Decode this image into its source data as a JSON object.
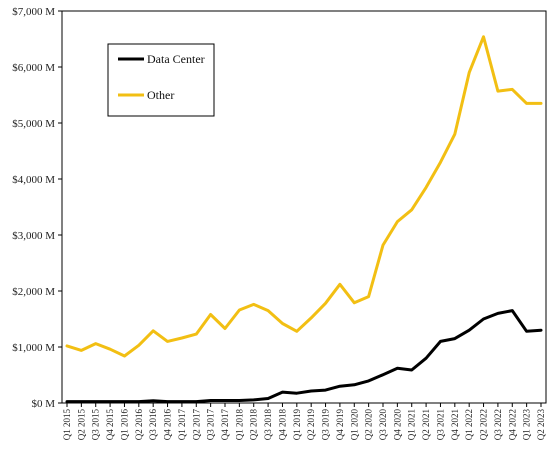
{
  "chart_data": {
    "type": "line",
    "title": "",
    "xlabel": "",
    "ylabel": "",
    "categories": [
      "Q1 2015",
      "Q2 2015",
      "Q3 2015",
      "Q4 2015",
      "Q1 2016",
      "Q2 2016",
      "Q3 2016",
      "Q4 2016",
      "Q1 2017",
      "Q2 2017",
      "Q3 2017",
      "Q4 2017",
      "Q1 2018",
      "Q2 2018",
      "Q3 2018",
      "Q4 2018",
      "Q1 2019",
      "Q2 2019",
      "Q3 2019",
      "Q4 2019",
      "Q1 2020",
      "Q2 2020",
      "Q3 2020",
      "Q4 2020",
      "Q1 2021",
      "Q2 2021",
      "Q3 2021",
      "Q4 2021",
      "Q1 2022",
      "Q2 2022",
      "Q3 2022",
      "Q4 2022",
      "Q1 2023",
      "Q2 2023"
    ],
    "series": [
      {
        "name": "Data Center",
        "color": "#000000",
        "values": [
          25,
          25,
          25,
          25,
          25,
          25,
          40,
          25,
          25,
          25,
          45,
          45,
          45,
          55,
          80,
          195,
          175,
          215,
          230,
          300,
          325,
          395,
          505,
          620,
          590,
          800,
          1100,
          1150,
          1300,
          1500,
          1600,
          1650,
          1280,
          1300
        ]
      },
      {
        "name": "Other",
        "color": "#F2BF13",
        "values": [
          1020,
          940,
          1060,
          960,
          840,
          1030,
          1290,
          1100,
          1160,
          1230,
          1580,
          1330,
          1660,
          1760,
          1650,
          1420,
          1280,
          1520,
          1780,
          2120,
          1790,
          1900,
          2820,
          3240,
          3450,
          3850,
          4300,
          4800,
          5900,
          6540,
          5570,
          5600,
          5350,
          5350
        ]
      }
    ],
    "ylim": [
      0,
      7000
    ],
    "yticks": [
      0,
      1000,
      2000,
      3000,
      4000,
      5000,
      6000,
      7000
    ],
    "ytick_labels": [
      "$0 M",
      "$1,000 M",
      "$2,000 M",
      "$3,000 M",
      "$4,000 M",
      "$5,000 M",
      "$6,000 M",
      "$7,000 M"
    ],
    "grid": false,
    "legend": {
      "placement": "top-left",
      "entries": [
        "Data Center",
        "Other"
      ]
    }
  }
}
